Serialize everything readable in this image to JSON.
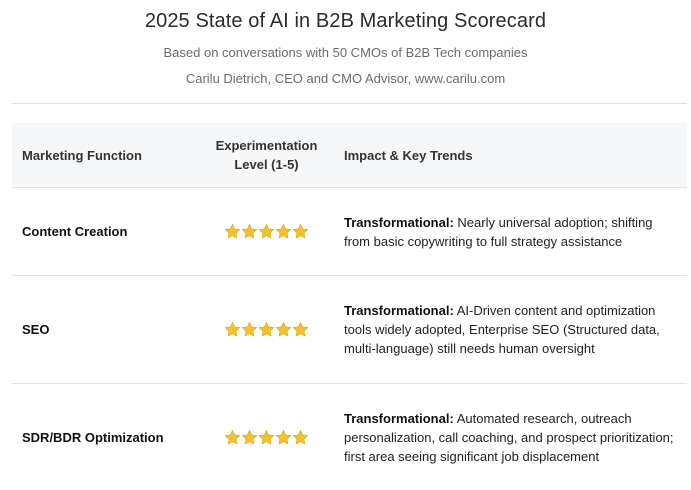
{
  "header": {
    "title": "2025 State of AI in B2B Marketing Scorecard",
    "subtitle": "Based on conversations with 50 CMOs of B2B Tech companies",
    "byline": "Carilu Dietrich, CEO and CMO Advisor, www.carilu.com"
  },
  "table": {
    "columns": [
      "Marketing Function",
      "Experimentation Level (1-5)",
      "Impact & Key Trends"
    ],
    "column_header_lines": {
      "level_line1": "Experimentation",
      "level_line2": "Level (1-5)"
    },
    "rows": [
      {
        "function": "Content Creation",
        "rating": 5,
        "impact_label": "Transformational:",
        "impact_text": "Nearly universal adoption; shifting from basic copywriting to full strategy assistance"
      },
      {
        "function": "SEO",
        "rating": 5,
        "impact_label": "Transformational:",
        "impact_text": "AI-Driven content and optimization tools widely adopted, Enterprise SEO (Structured data, multi-language) still needs human oversight"
      },
      {
        "function": "SDR/BDR Optimization",
        "rating": 5,
        "impact_label": "Transformational:",
        "impact_text": "Automated research, outreach personalization, call coaching, and prospect prioritization; first area seeing significant job displacement"
      }
    ]
  },
  "icons": {
    "rating": "star-icon"
  },
  "colors": {
    "star": "#f2c12e",
    "star_stroke": "#d9a514",
    "header_bg": "#f6f7f8",
    "rule": "#dcdcdc"
  }
}
